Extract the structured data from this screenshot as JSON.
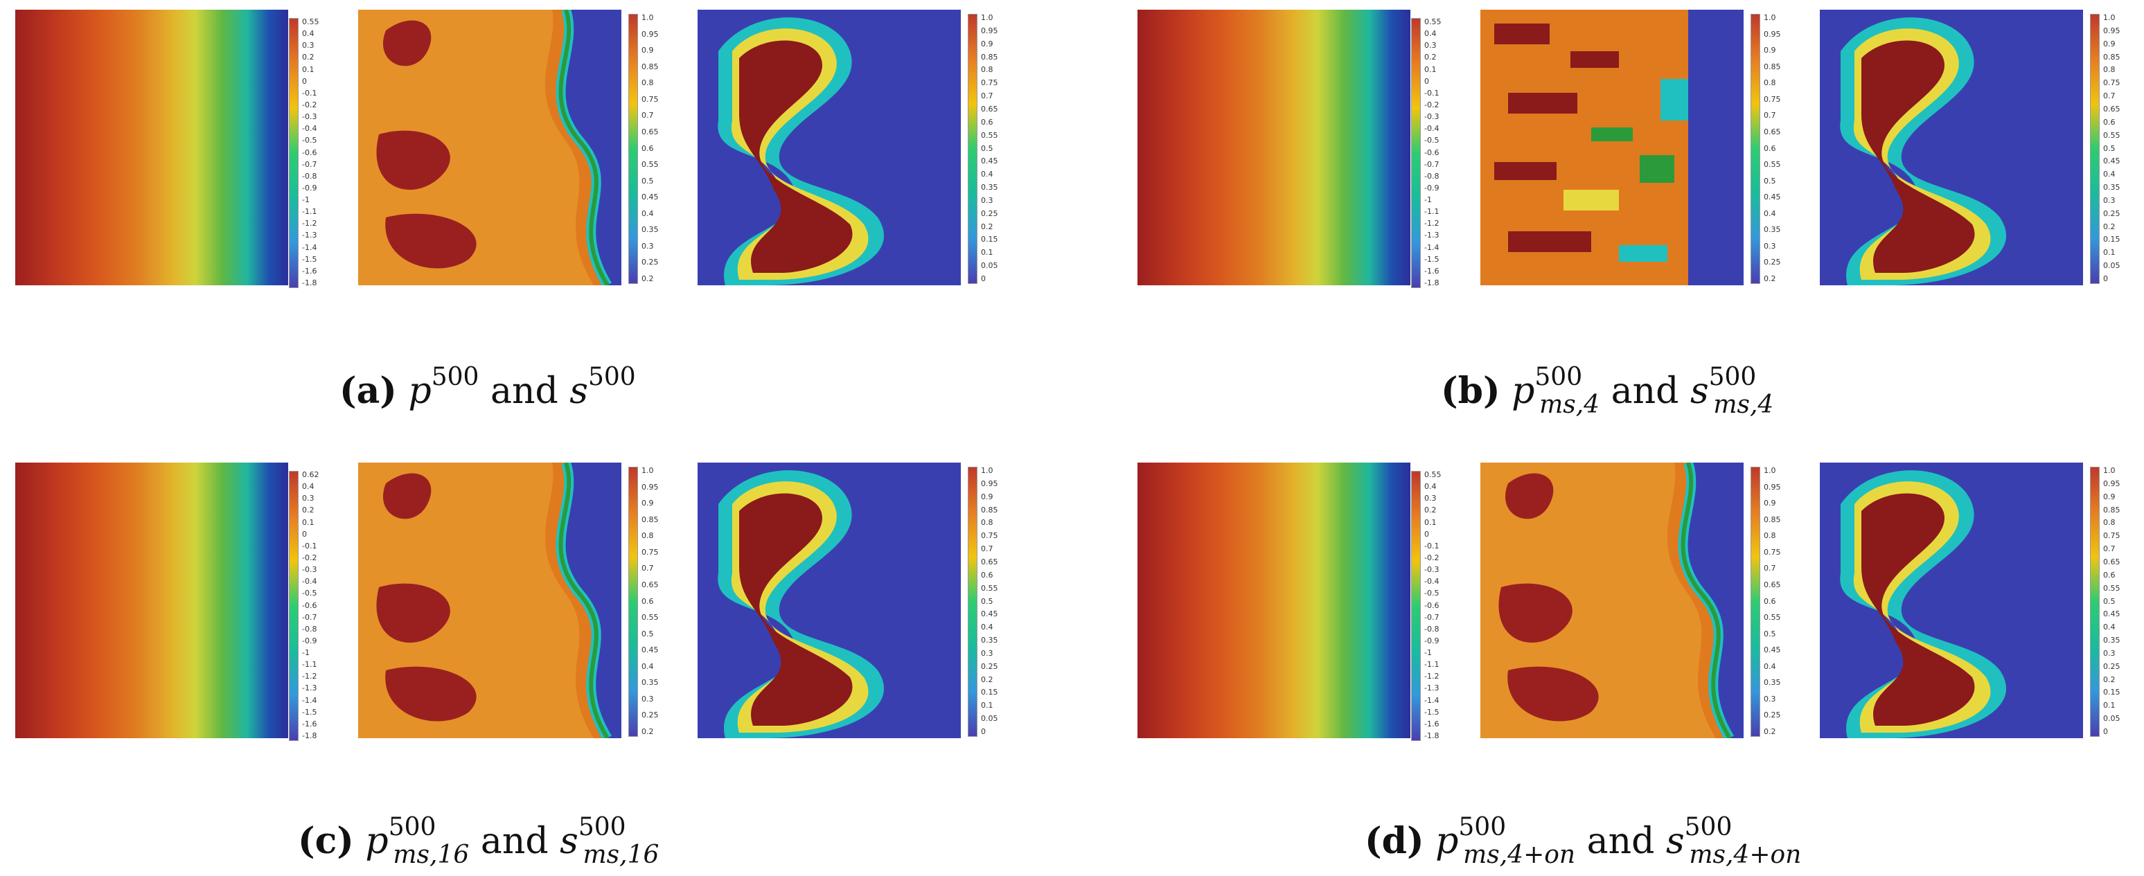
{
  "pressure_colorbars": {
    "a": [
      "0.55",
      "0.4",
      "0.3",
      "0.2",
      "0.1",
      "0",
      "-0.1",
      "-0.2",
      "-0.3",
      "-0.4",
      "-0.5",
      "-0.6",
      "-0.7",
      "-0.8",
      "-0.9",
      "-1",
      "-1.1",
      "-1.2",
      "-1.3",
      "-1.4",
      "-1.5",
      "-1.6",
      "-1.8"
    ],
    "b": [
      "0.55",
      "0.4",
      "0.3",
      "0.2",
      "0.1",
      "0",
      "-0.1",
      "-0.2",
      "-0.3",
      "-0.4",
      "-0.5",
      "-0.6",
      "-0.7",
      "-0.8",
      "-0.9",
      "-1",
      "-1.1",
      "-1.2",
      "-1.3",
      "-1.4",
      "-1.5",
      "-1.6",
      "-1.8"
    ],
    "c": [
      "0.62",
      "0.4",
      "0.3",
      "0.2",
      "0.1",
      "0",
      "-0.1",
      "-0.2",
      "-0.3",
      "-0.4",
      "-0.5",
      "-0.6",
      "-0.7",
      "-0.8",
      "-0.9",
      "-1",
      "-1.1",
      "-1.2",
      "-1.3",
      "-1.4",
      "-1.5",
      "-1.6",
      "-1.8"
    ],
    "d": [
      "0.55",
      "0.4",
      "0.3",
      "0.2",
      "0.1",
      "0",
      "-0.1",
      "-0.2",
      "-0.3",
      "-0.4",
      "-0.5",
      "-0.6",
      "-0.7",
      "-0.8",
      "-0.9",
      "-1",
      "-1.1",
      "-1.2",
      "-1.3",
      "-1.4",
      "-1.5",
      "-1.6",
      "-1.8"
    ]
  },
  "saturation_colorbar": [
    "1.0",
    "0.95",
    "0.9",
    "0.85",
    "0.8",
    "0.75",
    "0.7",
    "0.65",
    "0.6",
    "0.55",
    "0.5",
    "0.45",
    "0.4",
    "0.35",
    "0.3",
    "0.25",
    "0.2"
  ],
  "saturation_colorbar_full": [
    "1.0",
    "0.95",
    "0.9",
    "0.85",
    "0.8",
    "0.75",
    "0.7",
    "0.65",
    "0.6",
    "0.55",
    "0.5",
    "0.45",
    "0.4",
    "0.35",
    "0.3",
    "0.25",
    "0.2",
    "0.15",
    "0.1",
    "0.05",
    "0"
  ],
  "captions": {
    "a": {
      "tag": "(a)",
      "p": "p",
      "p_sup": "500",
      "and": "and",
      "s": "s",
      "s_sup": "500",
      "sub": ""
    },
    "b": {
      "tag": "(b)",
      "p": "p",
      "p_sup": "500",
      "and": "and",
      "s": "s",
      "s_sup": "500",
      "sub": "ms,4"
    },
    "c": {
      "tag": "(c)",
      "p": "p",
      "p_sup": "500",
      "and": "and",
      "s": "s",
      "s_sup": "500",
      "sub": "ms,16"
    },
    "d": {
      "tag": "(d)",
      "p": "p",
      "p_sup": "500",
      "and": "and",
      "s": "s",
      "s_sup": "500",
      "sub": "ms,4+on"
    }
  },
  "colors": {
    "jet_dark_red": "#8b1a1a",
    "orange": "#e06a1a",
    "yellow": "#e8d840",
    "green": "#2a9a3a",
    "cyan": "#20c0c0",
    "blue": "#3a3fb0"
  }
}
